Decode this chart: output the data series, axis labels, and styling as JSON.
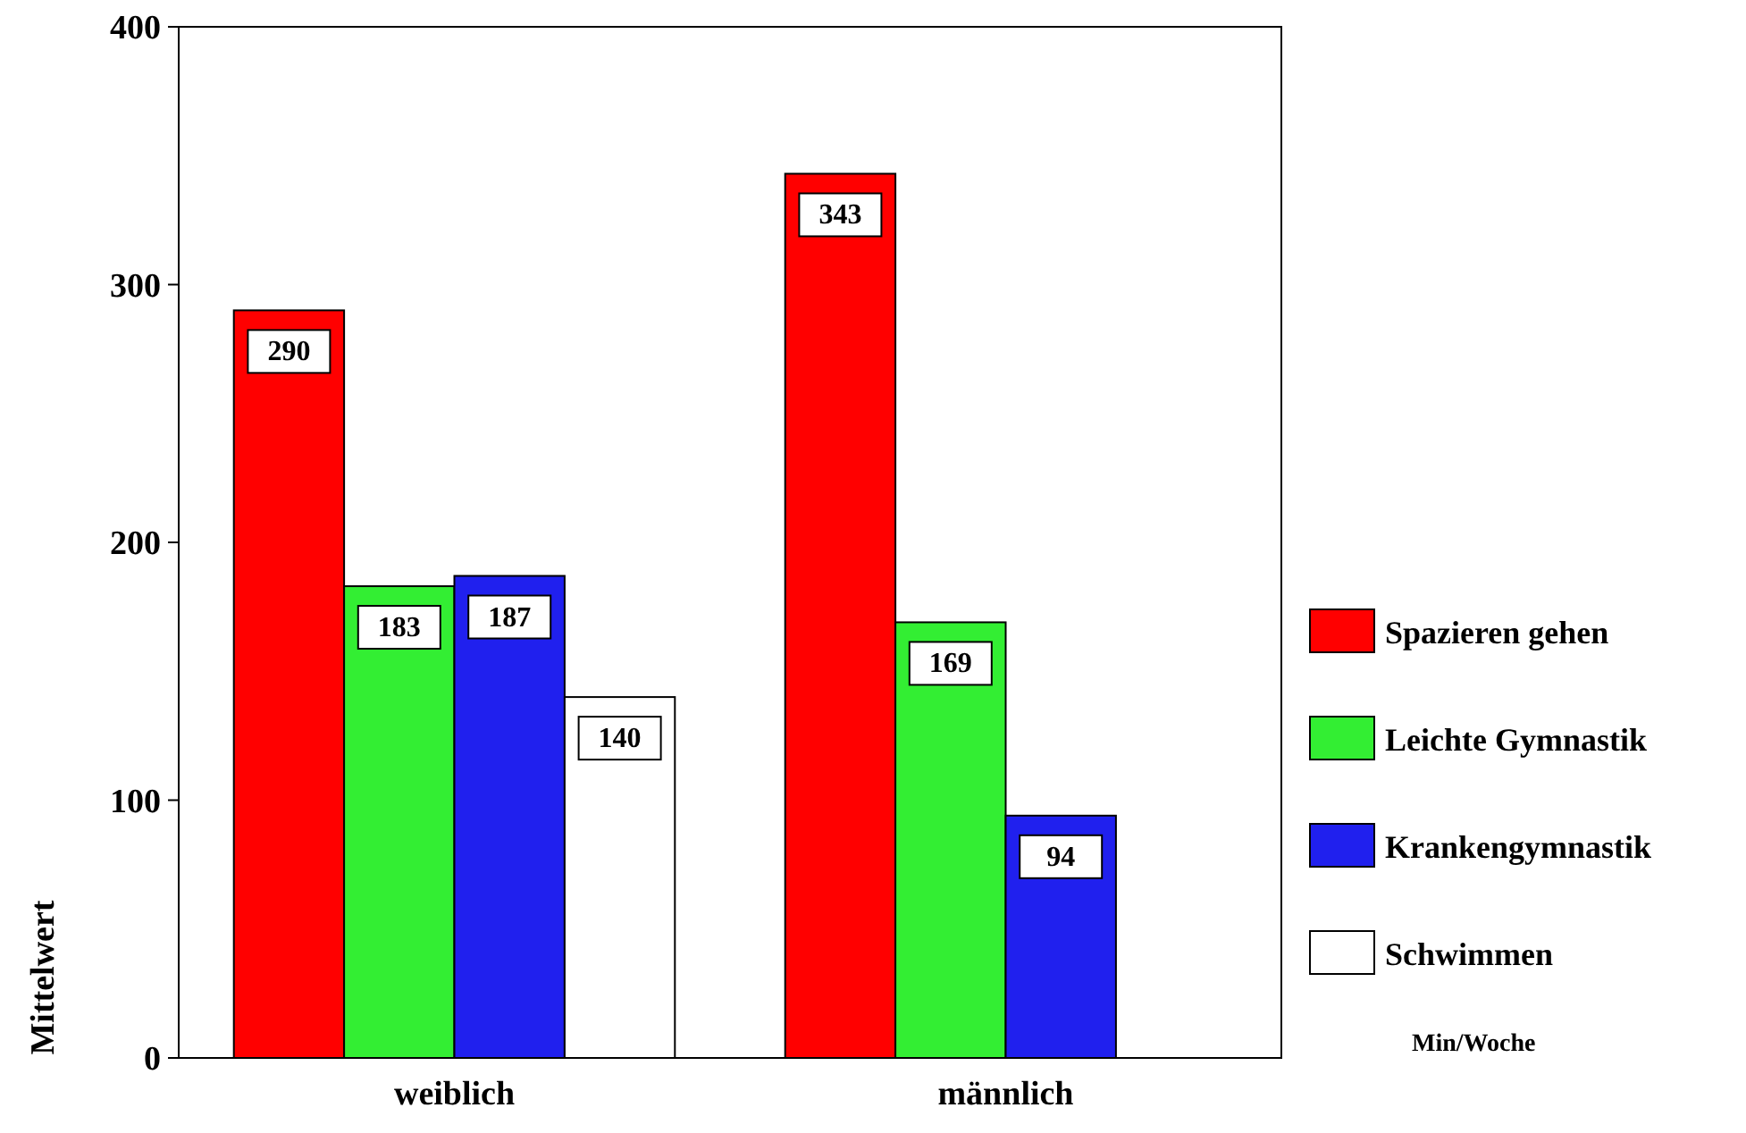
{
  "chart_data": {
    "type": "bar",
    "ylabel": "Mittelwert",
    "legend_title": "Min/Woche",
    "categories": [
      "weiblich",
      "männlich"
    ],
    "series": [
      {
        "name": "Spazieren gehen",
        "color": "#ff0000",
        "values": [
          290,
          343
        ]
      },
      {
        "name": "Leichte Gymnastik",
        "color": "#33ee33",
        "values": [
          183,
          169
        ]
      },
      {
        "name": "Krankengymnastik",
        "color": "#2020ee",
        "values": [
          187,
          94
        ]
      },
      {
        "name": "Schwimmen",
        "color": "#ffffff",
        "values": [
          140,
          null
        ]
      }
    ],
    "ylim": [
      0,
      400
    ],
    "yticks": [
      0,
      100,
      200,
      300,
      400
    ],
    "data_labels": true,
    "legend": "right",
    "grid": false
  }
}
